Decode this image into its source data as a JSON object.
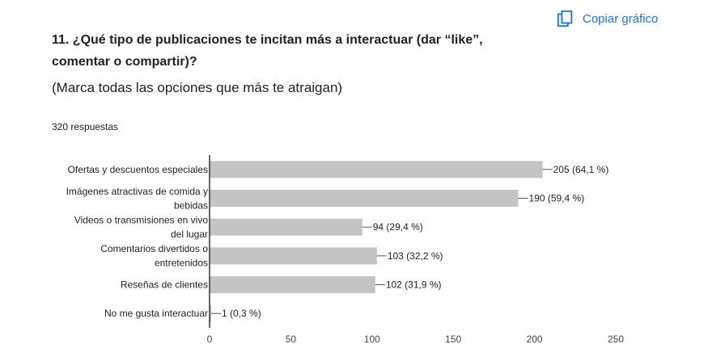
{
  "header": {
    "copy_label": "Copiar gráfico",
    "copy_icon": "copy-icon"
  },
  "question": {
    "title": "11. ¿Qué tipo de publicaciones te incitan más a interactuar (dar “like”, comentar o compartir)?",
    "description": "(Marca todas las opciones que más te atraigan)",
    "responses": "320 respuestas"
  },
  "chart_data": {
    "type": "bar",
    "orientation": "horizontal",
    "categories": [
      [
        "Ofertas y descuentos especiales"
      ],
      [
        "Imágenes atractivas de comida y",
        "bebidas"
      ],
      [
        "Videos o transmisiones en vivo",
        "del lugar"
      ],
      [
        "Comentarios divertidos o",
        "entretenidos"
      ],
      [
        "Reseñas de clientes"
      ],
      [
        "No me gusta interactuar"
      ]
    ],
    "values": [
      205,
      190,
      94,
      103,
      102,
      1
    ],
    "data_labels": [
      "205 (64,1 %)",
      "190 (59,4 %)",
      "94 (29,4 %)",
      "103 (32,2 %)",
      "102 (31,9 %)",
      "1 (0,3 %)"
    ],
    "xlim": [
      0,
      250
    ],
    "xticks": [
      0,
      50,
      100,
      150,
      200,
      250
    ],
    "bar_color": "#c4c4c4",
    "axis_color": "#333333",
    "grid": false,
    "legend": "none"
  }
}
